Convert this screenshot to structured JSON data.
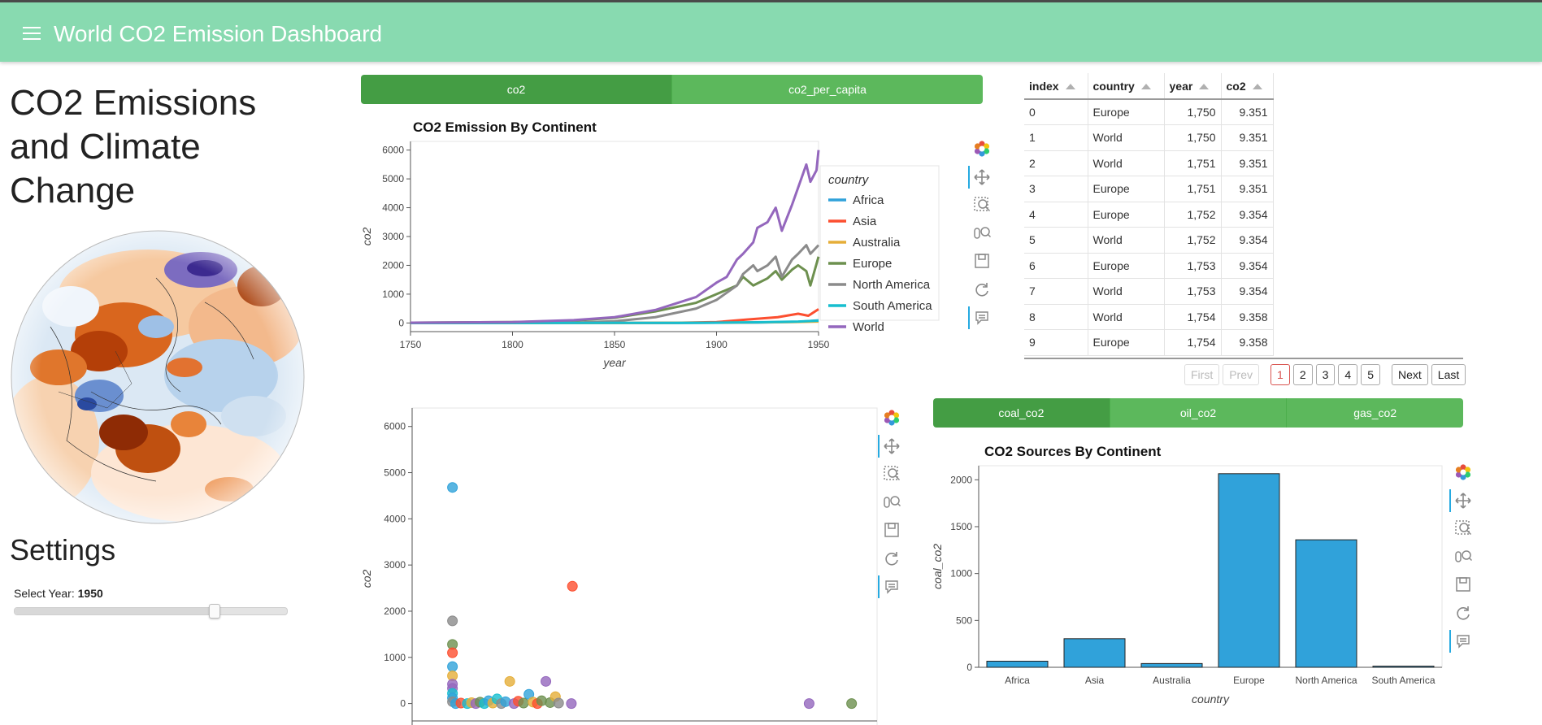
{
  "app": {
    "title": "World CO2 Emission Dashboard"
  },
  "sidebar": {
    "heading": "CO2 Emissions and Climate Change",
    "settings_title": "Settings",
    "slider": {
      "label": "Select Year:",
      "value": "1950",
      "min": 1750,
      "max": 2020,
      "current": 1950
    }
  },
  "tabs_top": [
    {
      "label": "co2",
      "active": true
    },
    {
      "label": "co2_per_capita",
      "active": false
    }
  ],
  "tabs_bottom": [
    {
      "label": "coal_co2",
      "active": true
    },
    {
      "label": "oil_co2",
      "active": false
    },
    {
      "label": "gas_co2",
      "active": false
    }
  ],
  "table": {
    "columns": [
      "index",
      "country",
      "year",
      "co2"
    ],
    "rows": [
      [
        "0",
        "Europe",
        "1,750",
        "9.351"
      ],
      [
        "1",
        "World",
        "1,750",
        "9.351"
      ],
      [
        "2",
        "World",
        "1,751",
        "9.351"
      ],
      [
        "3",
        "Europe",
        "1,751",
        "9.351"
      ],
      [
        "4",
        "Europe",
        "1,752",
        "9.354"
      ],
      [
        "5",
        "World",
        "1,752",
        "9.354"
      ],
      [
        "6",
        "Europe",
        "1,753",
        "9.354"
      ],
      [
        "7",
        "World",
        "1,753",
        "9.354"
      ],
      [
        "8",
        "World",
        "1,754",
        "9.358"
      ],
      [
        "9",
        "Europe",
        "1,754",
        "9.358"
      ]
    ],
    "pager": {
      "first": "First",
      "prev": "Prev",
      "pages": [
        "1",
        "2",
        "3",
        "4",
        "5"
      ],
      "current": "1",
      "next": "Next",
      "last": "Last"
    }
  },
  "colors": {
    "Africa": "#30a2da",
    "Asia": "#fc4f30",
    "Australia": "#e5ae38",
    "Europe": "#6d904f",
    "North America": "#8b8b8b",
    "South America": "#17becf",
    "World": "#9467bd",
    "bar": "#30a2da"
  },
  "chart_data": [
    {
      "type": "line",
      "title": "CO2 Emission By Continent",
      "xlabel": "year",
      "ylabel": "co2",
      "xlim": [
        1750,
        1950
      ],
      "ylim": [
        -300,
        6300
      ],
      "xticks": [
        1750,
        1800,
        1850,
        1900,
        1950
      ],
      "yticks": [
        0,
        1000,
        2000,
        3000,
        4000,
        5000,
        6000
      ],
      "legend_title": "country",
      "legend_position": "right",
      "series": [
        {
          "name": "Africa",
          "x": [
            1750,
            1850,
            1880,
            1900,
            1920,
            1940,
            1950
          ],
          "values": [
            0,
            0,
            1,
            5,
            15,
            40,
            90
          ]
        },
        {
          "name": "Asia",
          "x": [
            1750,
            1850,
            1880,
            1900,
            1915,
            1930,
            1940,
            1945,
            1950
          ],
          "values": [
            0,
            0,
            5,
            30,
            120,
            200,
            320,
            250,
            480
          ]
        },
        {
          "name": "Australia",
          "x": [
            1750,
            1850,
            1880,
            1900,
            1920,
            1940,
            1950
          ],
          "values": [
            0,
            0,
            5,
            10,
            20,
            35,
            50
          ]
        },
        {
          "name": "Europe",
          "x": [
            1750,
            1800,
            1830,
            1850,
            1870,
            1890,
            1900,
            1910,
            1913,
            1918,
            1925,
            1929,
            1932,
            1937,
            1940,
            1944,
            1946,
            1950
          ],
          "values": [
            9,
            30,
            80,
            180,
            400,
            700,
            1000,
            1300,
            1600,
            1300,
            1550,
            1800,
            1500,
            1850,
            2000,
            1800,
            1300,
            2300
          ]
        },
        {
          "name": "North America",
          "x": [
            1750,
            1830,
            1850,
            1870,
            1890,
            1900,
            1910,
            1913,
            1918,
            1920,
            1925,
            1929,
            1932,
            1937,
            1940,
            1944,
            1946,
            1950
          ],
          "values": [
            0,
            10,
            60,
            200,
            500,
            800,
            1300,
            1700,
            2000,
            1800,
            2000,
            2300,
            1600,
            2200,
            2400,
            2700,
            2400,
            2700
          ]
        },
        {
          "name": "South America",
          "x": [
            1750,
            1880,
            1900,
            1920,
            1940,
            1950
          ],
          "values": [
            0,
            2,
            10,
            25,
            50,
            80
          ]
        },
        {
          "name": "World",
          "x": [
            1750,
            1800,
            1830,
            1850,
            1870,
            1890,
            1900,
            1905,
            1910,
            1913,
            1918,
            1920,
            1925,
            1929,
            1932,
            1937,
            1940,
            1944,
            1946,
            1949,
            1950
          ],
          "values": [
            9,
            30,
            100,
            200,
            450,
            900,
            1400,
            1600,
            2200,
            2400,
            2800,
            3300,
            3500,
            4000,
            3200,
            4100,
            4700,
            5500,
            4900,
            5300,
            6000
          ]
        }
      ]
    },
    {
      "type": "scatter",
      "title": "",
      "xlabel": "",
      "ylabel": "co2",
      "xlim": [
        -8,
        430
      ],
      "ylim": [
        -500,
        6400
      ],
      "yticks": [
        0,
        1000,
        2000,
        3000,
        4000,
        5000,
        6000
      ],
      "points": [
        {
          "x": 30,
          "y": 4680,
          "c": "Africa"
        },
        {
          "x": 143,
          "y": 2540,
          "c": "Asia"
        },
        {
          "x": 30,
          "y": 1790,
          "c": "North America"
        },
        {
          "x": 30,
          "y": 1280,
          "c": "Europe"
        },
        {
          "x": 30,
          "y": 1100,
          "c": "Asia"
        },
        {
          "x": 30,
          "y": 800,
          "c": "Africa"
        },
        {
          "x": 30,
          "y": 600,
          "c": "Australia"
        },
        {
          "x": 30,
          "y": 420,
          "c": "World"
        },
        {
          "x": 30,
          "y": 330,
          "c": "World"
        },
        {
          "x": 30,
          "y": 220,
          "c": "South America"
        },
        {
          "x": 30,
          "y": 120,
          "c": "Africa"
        },
        {
          "x": 30,
          "y": 40,
          "c": "North America"
        },
        {
          "x": 33,
          "y": 0,
          "c": "Africa"
        },
        {
          "x": 38,
          "y": 10,
          "c": "Asia"
        },
        {
          "x": 44,
          "y": 0,
          "c": "South America"
        },
        {
          "x": 48,
          "y": 20,
          "c": "Australia"
        },
        {
          "x": 52,
          "y": 0,
          "c": "World"
        },
        {
          "x": 56,
          "y": 30,
          "c": "Europe"
        },
        {
          "x": 60,
          "y": 0,
          "c": "South America"
        },
        {
          "x": 64,
          "y": 60,
          "c": "Africa"
        },
        {
          "x": 68,
          "y": 10,
          "c": "Australia"
        },
        {
          "x": 72,
          "y": 100,
          "c": "South America"
        },
        {
          "x": 76,
          "y": 0,
          "c": "North America"
        },
        {
          "x": 80,
          "y": 40,
          "c": "Africa"
        },
        {
          "x": 84,
          "y": 480,
          "c": "Australia"
        },
        {
          "x": 88,
          "y": 0,
          "c": "World"
        },
        {
          "x": 92,
          "y": 50,
          "c": "Asia"
        },
        {
          "x": 97,
          "y": 10,
          "c": "Europe"
        },
        {
          "x": 102,
          "y": 200,
          "c": "Africa"
        },
        {
          "x": 106,
          "y": 30,
          "c": "Australia"
        },
        {
          "x": 110,
          "y": 0,
          "c": "Asia"
        },
        {
          "x": 114,
          "y": 60,
          "c": "Europe"
        },
        {
          "x": 118,
          "y": 480,
          "c": "World"
        },
        {
          "x": 122,
          "y": 20,
          "c": "Europe"
        },
        {
          "x": 127,
          "y": 150,
          "c": "Australia"
        },
        {
          "x": 130,
          "y": 10,
          "c": "North America"
        },
        {
          "x": 142,
          "y": 0,
          "c": "World"
        },
        {
          "x": 366,
          "y": 0,
          "c": "World"
        },
        {
          "x": 406,
          "y": 0,
          "c": "Europe"
        }
      ]
    },
    {
      "type": "bar",
      "title": "CO2 Sources By Continent",
      "xlabel": "country",
      "ylabel": "coal_co2",
      "ylim": [
        0,
        2150
      ],
      "yticks": [
        0,
        500,
        1000,
        1500,
        2000
      ],
      "categories": [
        "Africa",
        "Asia",
        "Australia",
        "Europe",
        "North America",
        "South America"
      ],
      "values": [
        65,
        305,
        40,
        2065,
        1360,
        12
      ]
    }
  ]
}
